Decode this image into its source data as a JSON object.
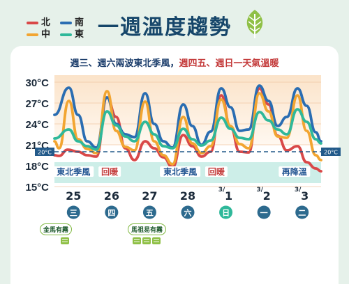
{
  "legend": [
    {
      "label": "北",
      "color": "#d94848"
    },
    {
      "label": "南",
      "color": "#2a6db2"
    },
    {
      "label": "中",
      "color": "#f2a531"
    },
    {
      "label": "東",
      "color": "#2fb89a"
    }
  ],
  "title": "一週溫度趨勢",
  "subtitle": {
    "part1": "週三、週六兩波東北季風，",
    "part2": "週四五、週日一天氣溫暖"
  },
  "colors": {
    "background": "#e6f1ea",
    "title": "#16466a",
    "band": "#cdeee8",
    "reference": "#235a8a",
    "day_circle": "#2d6a8e",
    "day_circle_sun": "#2fb89a",
    "leaf": "#8fc046"
  },
  "chart_data": {
    "type": "line",
    "yunit": "°C",
    "ylim": [
      15,
      31
    ],
    "yticks": [
      "30°C",
      "27°C",
      "24°C",
      "21°C",
      "18°C",
      "15°C"
    ],
    "ytick_values": [
      30,
      27,
      24,
      21,
      18,
      15
    ],
    "xlim": [
      0,
      7
    ],
    "reference_line": {
      "value": 20,
      "label_left": "20°C",
      "label_right": "20°C"
    },
    "series": [
      {
        "name": "北",
        "color": "#d94848",
        "x": [
          0,
          0.12,
          0.35,
          0.62,
          0.86,
          1.1,
          1.38,
          1.62,
          1.86,
          2.1,
          2.38,
          2.62,
          2.86,
          3.1,
          3.38,
          3.62,
          3.86,
          4.1,
          4.38,
          4.62,
          4.86,
          5.1,
          5.38,
          5.62,
          5.86,
          6.1,
          6.38,
          6.62,
          6.86,
          7.0
        ],
        "y": [
          19.5,
          19.4,
          20.3,
          20.0,
          19.5,
          19.3,
          27.8,
          25.0,
          20.5,
          18.8,
          21.5,
          20.5,
          19.2,
          17.8,
          22.4,
          20.8,
          19.3,
          20.0,
          28.1,
          23.6,
          20.0,
          19.9,
          29.1,
          26.8,
          22.3,
          20.2,
          20.8,
          18.5,
          17.6,
          17.2
        ]
      },
      {
        "name": "南",
        "color": "#2a6db2",
        "x": [
          0,
          0.38,
          0.62,
          0.86,
          1.1,
          1.38,
          1.62,
          1.86,
          2.1,
          2.38,
          2.62,
          2.86,
          3.1,
          3.38,
          3.62,
          3.86,
          4.1,
          4.38,
          4.62,
          4.86,
          5.1,
          5.38,
          5.62,
          5.86,
          6.1,
          6.38,
          6.62,
          6.86,
          7.0
        ],
        "y": [
          25.3,
          29.2,
          25.3,
          21.5,
          20.6,
          27.8,
          24.0,
          22.5,
          22.1,
          28.4,
          24.0,
          21.5,
          20.6,
          26.8,
          23.7,
          21.0,
          22.9,
          29.1,
          26.4,
          23.0,
          23.2,
          29.5,
          27.3,
          23.7,
          25.0,
          29.1,
          26.6,
          22.8,
          21.5
        ]
      },
      {
        "name": "中",
        "color": "#f2a531",
        "x": [
          0,
          0.12,
          0.38,
          0.62,
          0.86,
          1.1,
          1.38,
          1.62,
          1.86,
          2.1,
          2.38,
          2.62,
          2.86,
          3.1,
          3.38,
          3.62,
          3.86,
          4.1,
          4.38,
          4.62,
          4.86,
          5.1,
          5.38,
          5.62,
          5.86,
          6.1,
          6.38,
          6.62,
          6.86,
          7.0
        ],
        "y": [
          21.5,
          20.5,
          27.3,
          21.8,
          20.4,
          19.8,
          28.7,
          23.0,
          20.7,
          20.2,
          27.2,
          21.5,
          19.5,
          18.2,
          25.0,
          21.2,
          19.8,
          20.8,
          27.5,
          23.7,
          21.1,
          20.5,
          28.4,
          25.8,
          22.2,
          22.0,
          28.1,
          23.0,
          19.5,
          18.8
        ]
      },
      {
        "name": "東",
        "color": "#2fb89a",
        "x": [
          0,
          0.38,
          0.62,
          0.86,
          1.1,
          1.38,
          1.62,
          1.86,
          2.1,
          2.38,
          2.62,
          2.86,
          3.1,
          3.38,
          3.62,
          3.86,
          4.1,
          4.38,
          4.62,
          4.86,
          5.1,
          5.38,
          5.62,
          5.86,
          6.1,
          6.38,
          6.62,
          6.86,
          7.0
        ],
        "y": [
          21.9,
          23.2,
          21.5,
          20.8,
          20.3,
          25.8,
          23.8,
          22.2,
          21.5,
          24.3,
          22.5,
          20.8,
          20.5,
          23.3,
          21.8,
          20.9,
          21.6,
          24.9,
          23.3,
          22.0,
          21.8,
          25.7,
          24.5,
          23.2,
          22.5,
          26.1,
          24.3,
          21.8,
          21.2
        ]
      }
    ],
    "band_labels": [
      {
        "text": "東北季風",
        "x": 0.5,
        "color": "#1e5290"
      },
      {
        "text": "回暖",
        "x": 1.45,
        "color": "#c43c3c"
      },
      {
        "text": "東北季風",
        "x": 3.3,
        "color": "#1e5290"
      },
      {
        "text": "回暖",
        "x": 4.25,
        "color": "#c43c3c"
      },
      {
        "text": "再降溫",
        "x": 6.3,
        "color": "#1e5290"
      }
    ],
    "dates": [
      "25",
      "26",
      "27",
      "28",
      "3/1",
      "3/2",
      "3/3"
    ],
    "weekdays": [
      "三",
      "四",
      "五",
      "六",
      "日",
      "一",
      "二"
    ],
    "fog_notes": [
      {
        "label": "金馬有霧",
        "day_index": 0,
        "icons": 1
      },
      {
        "label": "馬祖易有霧",
        "day_index": 2,
        "icons": 3
      }
    ]
  }
}
